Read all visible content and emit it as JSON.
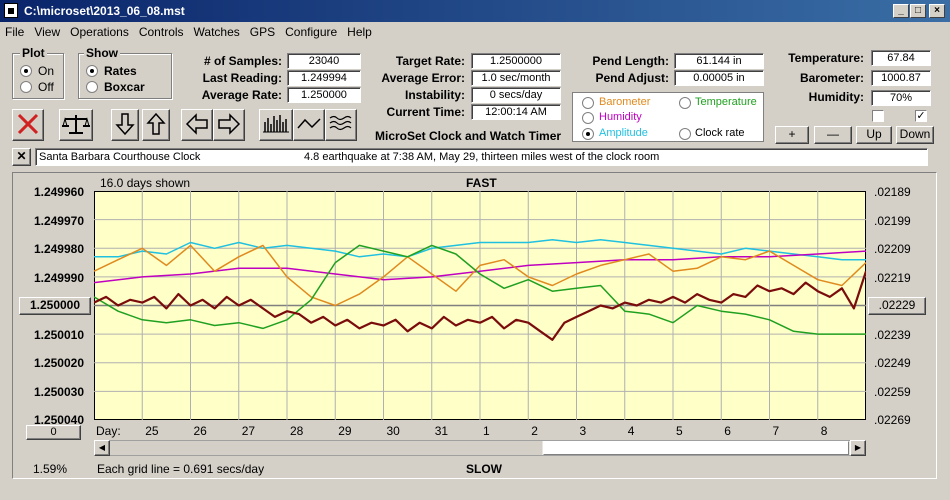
{
  "window": {
    "title": "C:\\microset\\2013_06_08.mst"
  },
  "menu": [
    "File",
    "View",
    "Operations",
    "Controls",
    "Watches",
    "GPS",
    "Configure",
    "Help"
  ],
  "plot_group": {
    "title": "Plot",
    "options": [
      "On",
      "Off"
    ],
    "selected": "On"
  },
  "show_group": {
    "title": "Show",
    "options": [
      "Rates",
      "Boxcar"
    ],
    "selected": "Rates"
  },
  "stats": {
    "samples_label": "# of Samples:",
    "samples": "23040",
    "last_label": "Last Reading:",
    "last": "1.249994",
    "avg_label": "Average Rate:",
    "avg": "1.250000"
  },
  "rates": {
    "target_label": "Target Rate:",
    "target": "1.2500000",
    "error_label": "Average Error:",
    "error": "1.0 sec/month",
    "instab_label": "Instability:",
    "instab": "0 secs/day",
    "time_label": "Current Time:",
    "time": "12:00:14 AM"
  },
  "pendulum": {
    "length_label": "Pend Length:",
    "length": "61.144 in",
    "adjust_label": "Pend Adjust:",
    "adjust": "0.00005 in"
  },
  "environment": {
    "temp_label": "Temperature:",
    "temp": "67.84",
    "baro_label": "Barometer:",
    "baro": "1000.87",
    "hum_label": "Humidity:",
    "hum": "70%"
  },
  "series_select": {
    "items": [
      {
        "label": "Barometer",
        "color": "#e08a1e",
        "selected": false
      },
      {
        "label": "Temperature",
        "color": "#20a020",
        "selected": false
      },
      {
        "label": "Humidity",
        "color": "#c000c0",
        "selected": false
      },
      {
        "label": "Amplitude",
        "color": "#20c0e0",
        "selected": true
      },
      {
        "label": "Clock rate",
        "color": "#000000",
        "selected": false
      }
    ]
  },
  "env_buttons": [
    "+",
    "—",
    "Up",
    "Down"
  ],
  "checkboxes": [
    false,
    true
  ],
  "app_caption": "MicroSet Clock and Watch Timer",
  "note": {
    "name": "Santa Barbara Courthouse Clock",
    "text": "4.8 earthquake at 7:38 AM, May 29, thirteen miles west of the clock room"
  },
  "toolbar_icons": [
    "close-x-icon",
    "balance-scale-icon",
    "arrow-down-icon",
    "arrow-up-icon",
    "arrow-left-icon",
    "arrow-right-icon",
    "bar-histogram-icon",
    "line-wave-icon",
    "multi-wave-icon"
  ],
  "graph": {
    "days_shown": "16.0 days shown",
    "top_caption": "FAST",
    "bottom_caption": "SLOW",
    "grid_note": "Each grid line = 0.691 secs/day",
    "percent": "1.59%",
    "left_button": "1.250000",
    "right_button": ".02229",
    "zero_button": "0",
    "day_prefix": "Day:"
  },
  "chart_data": {
    "type": "line",
    "left_axis": [
      "1.249960",
      "1.249970",
      "1.249980",
      "1.249990",
      "1.250000",
      "1.250010",
      "1.250020",
      "1.250030",
      "1.250040"
    ],
    "right_axis": [
      ".02189",
      ".02199",
      ".02209",
      ".02219",
      ".02229",
      ".02239",
      ".02249",
      ".02259",
      ".02269"
    ],
    "ylim": [
      1.24996,
      1.25004
    ],
    "y_inverted": true,
    "x_days": [
      "25",
      "26",
      "27",
      "28",
      "29",
      "30",
      "31",
      "1",
      "2",
      "3",
      "4",
      "5",
      "6",
      "7",
      "8"
    ],
    "xlim": [
      0,
      16
    ],
    "series": [
      {
        "color": "#20c0e0",
        "x": [
          0,
          0.5,
          1,
          1.5,
          2,
          2.5,
          3,
          3.5,
          4,
          4.5,
          5,
          5.5,
          6,
          6.5,
          7,
          7.5,
          8,
          8.5,
          9,
          9.5,
          10,
          10.5,
          11,
          11.5,
          12,
          12.5,
          13,
          13.5,
          14,
          14.5,
          15,
          15.5,
          16
        ],
        "y": [
          1.249983,
          1.249983,
          1.249981,
          1.249982,
          1.249978,
          1.24998,
          1.249978,
          1.24998,
          1.249979,
          1.24998,
          1.249981,
          1.249983,
          1.249982,
          1.249983,
          1.24998,
          1.249979,
          1.249978,
          1.249978,
          1.249978,
          1.249977,
          1.249978,
          1.249977,
          1.249978,
          1.249979,
          1.24998,
          1.249981,
          1.249982,
          1.24998,
          1.249981,
          1.249982,
          1.249983,
          1.249984,
          1.249984
        ]
      },
      {
        "color": "#c000c0",
        "x": [
          0,
          1,
          2,
          3,
          4,
          5,
          6,
          7,
          8,
          9,
          10,
          11,
          12,
          13,
          14,
          15,
          16
        ],
        "y": [
          1.249992,
          1.24999,
          1.249989,
          1.249987,
          1.249987,
          1.249989,
          1.249991,
          1.24999,
          1.249988,
          1.249986,
          1.249985,
          1.249984,
          1.249984,
          1.249983,
          1.249983,
          1.249982,
          1.249981
        ]
      },
      {
        "color": "#e08a1e",
        "x": [
          0,
          0.5,
          1,
          1.5,
          2,
          2.5,
          3,
          3.5,
          4,
          4.5,
          5,
          5.5,
          6,
          6.5,
          7,
          7.5,
          8,
          8.5,
          9,
          9.5,
          10,
          10.5,
          11,
          11.5,
          12,
          12.5,
          13,
          13.5,
          14,
          14.5,
          15,
          15.5,
          16
        ],
        "y": [
          1.249988,
          1.249984,
          1.24998,
          1.249986,
          1.249979,
          1.249988,
          1.249983,
          1.249979,
          1.24999,
          1.249997,
          1.25,
          1.249996,
          1.24999,
          1.249983,
          1.249989,
          1.249995,
          1.249986,
          1.249984,
          1.24999,
          1.249993,
          1.249989,
          1.249986,
          1.249984,
          1.249982,
          1.249988,
          1.249987,
          1.249983,
          1.249984,
          1.249981,
          1.249986,
          1.249991,
          1.249993,
          1.249985
        ]
      },
      {
        "color": "#20a020",
        "x": [
          0,
          0.5,
          1,
          1.5,
          2,
          2.5,
          3,
          3.5,
          4,
          4.5,
          5,
          5.5,
          6,
          6.5,
          7,
          7.5,
          8,
          8.5,
          9,
          9.5,
          10,
          10.5,
          11,
          11.5,
          12,
          12.5,
          13,
          13.5,
          14,
          14.5,
          15,
          15.5,
          16
        ],
        "y": [
          1.249997,
          1.250002,
          1.250005,
          1.250006,
          1.250005,
          1.250007,
          1.250006,
          1.250008,
          1.250005,
          1.249998,
          1.249985,
          1.249979,
          1.249981,
          1.249983,
          1.249979,
          1.249982,
          1.249989,
          1.249994,
          1.249991,
          1.249995,
          1.249994,
          1.249993,
          1.250002,
          1.250003,
          1.250006,
          1.25,
          1.250002,
          1.250003,
          1.250005,
          1.250009,
          1.25001,
          1.25001,
          1.25001
        ]
      },
      {
        "color": "#7a0c0c",
        "x": [
          0,
          0.25,
          0.5,
          0.75,
          1,
          1.25,
          1.5,
          1.75,
          2,
          2.25,
          2.5,
          2.75,
          3,
          3.25,
          3.5,
          3.75,
          4,
          4.25,
          4.5,
          4.75,
          5,
          5.25,
          5.5,
          5.75,
          6,
          6.25,
          6.5,
          6.75,
          7,
          7.25,
          7.5,
          7.75,
          8,
          8.25,
          8.5,
          8.75,
          9,
          9.25,
          9.5,
          9.75,
          10,
          10.25,
          10.5,
          10.75,
          11,
          11.25,
          11.5,
          11.75,
          12,
          12.25,
          12.5,
          12.75,
          13,
          13.25,
          13.5,
          13.75,
          14,
          14.25,
          14.5,
          14.75,
          15,
          15.25,
          15.5,
          15.75,
          16
        ],
        "y": [
          1.249999,
          1.249997,
          1.25,
          1.249998,
          1.249999,
          1.249997,
          1.250001,
          1.249996,
          1.25,
          1.249998,
          1.250001,
          1.249997,
          1.25,
          1.249998,
          1.250001,
          1.250004,
          1.250002,
          1.250003,
          1.250006,
          1.250004,
          1.250007,
          1.250005,
          1.250008,
          1.250006,
          1.250007,
          1.250005,
          1.250009,
          1.250006,
          1.250008,
          1.250004,
          1.250007,
          1.250005,
          1.250006,
          1.250004,
          1.250008,
          1.250005,
          1.250006,
          1.250009,
          1.250012,
          1.250006,
          1.250004,
          1.250002,
          1.25,
          1.250001,
          1.249999,
          1.25,
          1.249998,
          1.249999,
          1.249997,
          1.249999,
          1.249996,
          1.249998,
          1.249999,
          1.249996,
          1.249997,
          1.249993,
          1.249995,
          1.249994,
          1.249996,
          1.249992,
          1.249995,
          1.249997,
          1.249994,
          1.250001,
          1.249988
        ]
      }
    ]
  }
}
